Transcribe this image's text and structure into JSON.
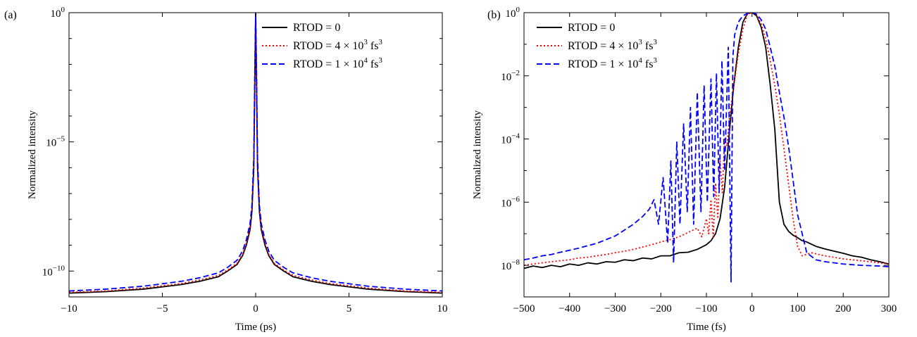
{
  "chart_data": [
    {
      "type": "line",
      "panel_label": "(a)",
      "xlabel": "Time (ps)",
      "ylabel": "Normalized intensity",
      "xlim": [
        -10,
        10
      ],
      "ylim_log10": [
        -11,
        0
      ],
      "y_scale": "log",
      "xticks": [
        -10,
        -5,
        0,
        5,
        10
      ],
      "xtick_labels": [
        "−10",
        "−5",
        "0",
        "5",
        "10"
      ],
      "yticks_log10": [
        0,
        -5,
        -10
      ],
      "ytick_labels": [
        {
          "base": "10",
          "exp": "0"
        },
        {
          "base": "10",
          "exp": "−5"
        },
        {
          "base": "10",
          "exp": "−10"
        }
      ],
      "grid": false,
      "legend_position": "top-right",
      "series": [
        {
          "name": "RTOD = 0",
          "legend": {
            "prefix": "RTOD = 0",
            "exp": "",
            "suffix": ""
          },
          "color": "#000000",
          "dash": "solid",
          "x": [
            -10,
            -8,
            -6,
            -4,
            -3,
            -2,
            -1.5,
            -1,
            -0.7,
            -0.5,
            -0.3,
            -0.2,
            -0.1,
            -0.05,
            0,
            0.05,
            0.1,
            0.2,
            0.3,
            0.5,
            0.7,
            1,
            1.5,
            2,
            3,
            4,
            6,
            8,
            10
          ],
          "y": [
            1.4e-11,
            1.6e-11,
            2e-11,
            3e-11,
            4e-11,
            6e-11,
            1e-10,
            1.8e-10,
            4e-10,
            1e-09,
            4e-09,
            2e-08,
            1e-06,
            0.001,
            1.0,
            0.001,
            1e-06,
            2e-08,
            4e-09,
            1e-09,
            4e-10,
            1.8e-10,
            1e-10,
            6e-11,
            4e-11,
            3e-11,
            2e-11,
            1.6e-11,
            1.4e-11
          ]
        },
        {
          "name": "RTOD = 4 × 10^3 fs^3",
          "legend": {
            "prefix": "RTOD = 4 × 10",
            "exp": "3",
            "suffix": " fs",
            "exp2": "3"
          },
          "color": "#ff0000",
          "dash": "dotted",
          "x": [
            -10,
            -8,
            -6,
            -4,
            -3,
            -2,
            -1.5,
            -1,
            -0.7,
            -0.5,
            -0.3,
            -0.2,
            -0.1,
            -0.05,
            0,
            0.05,
            0.1,
            0.2,
            0.3,
            0.5,
            0.7,
            1,
            1.5,
            2,
            3,
            4,
            6,
            8,
            10
          ],
          "y": [
            1.5e-11,
            1.7e-11,
            2.2e-11,
            3.3e-11,
            4.5e-11,
            6.8e-11,
            1.1e-10,
            2e-10,
            4.5e-10,
            1.2e-09,
            5e-09,
            2.5e-08,
            1.5e-06,
            0.002,
            1.0,
            0.002,
            1.5e-06,
            2.5e-08,
            5e-09,
            1.2e-09,
            4.5e-10,
            2e-10,
            1.1e-10,
            6.8e-11,
            4.5e-11,
            3.3e-11,
            2.2e-11,
            1.7e-11,
            1.5e-11
          ]
        },
        {
          "name": "RTOD = 1 × 10^4 fs^3",
          "legend": {
            "prefix": "RTOD = 1 × 10",
            "exp": "4",
            "suffix": " fs",
            "exp2": "3"
          },
          "color": "#0000ff",
          "dash": "dashed",
          "x": [
            -10,
            -8,
            -6,
            -4,
            -3,
            -2,
            -1.5,
            -1,
            -0.7,
            -0.5,
            -0.3,
            -0.2,
            -0.1,
            -0.05,
            0,
            0.05,
            0.1,
            0.2,
            0.3,
            0.5,
            0.7,
            1,
            1.5,
            2,
            3,
            4,
            6,
            8,
            10
          ],
          "y": [
            1.7e-11,
            2e-11,
            2.6e-11,
            4e-11,
            5.5e-11,
            8.5e-11,
            1.4e-10,
            2.6e-10,
            6e-10,
            1.6e-09,
            7e-09,
            3.5e-08,
            2.5e-06,
            0.003,
            1.0,
            0.003,
            2.5e-06,
            3.5e-08,
            7e-09,
            1.6e-09,
            6e-10,
            2.6e-10,
            1.4e-10,
            8.5e-11,
            5.5e-11,
            4e-11,
            2.6e-11,
            2e-11,
            1.7e-11
          ]
        }
      ]
    },
    {
      "type": "line",
      "panel_label": "(b)",
      "xlabel": "Time (fs)",
      "ylabel": "Normalized intensity",
      "xlim": [
        -500,
        300
      ],
      "ylim_log10": [
        -9,
        0
      ],
      "y_scale": "log",
      "xticks": [
        -500,
        -400,
        -300,
        -200,
        -100,
        0,
        100,
        200,
        300
      ],
      "xtick_labels": [
        "−500",
        "−400",
        "−300",
        "−200",
        "−100",
        "0",
        "100",
        "200",
        "300"
      ],
      "yticks_log10": [
        0,
        -2,
        -4,
        -6,
        -8
      ],
      "ytick_labels": [
        {
          "base": "10",
          "exp": "0"
        },
        {
          "base": "10",
          "exp": "−2"
        },
        {
          "base": "10",
          "exp": "−4"
        },
        {
          "base": "10",
          "exp": "−6"
        },
        {
          "base": "10",
          "exp": "−8"
        }
      ],
      "grid": false,
      "legend_position": "top-left",
      "series": [
        {
          "name": "RTOD = 0",
          "legend": {
            "prefix": "RTOD = 0",
            "exp": "",
            "suffix": ""
          },
          "color": "#000000",
          "dash": "solid",
          "x": [
            -500,
            -480,
            -460,
            -440,
            -420,
            -400,
            -380,
            -360,
            -340,
            -320,
            -300,
            -280,
            -260,
            -240,
            -220,
            -200,
            -180,
            -160,
            -140,
            -120,
            -100,
            -90,
            -80,
            -70,
            -60,
            -50,
            -40,
            -30,
            -20,
            -10,
            0,
            10,
            20,
            30,
            40,
            50,
            60,
            70,
            80,
            90,
            100,
            110,
            120,
            140,
            160,
            180,
            200,
            220,
            240,
            260,
            280,
            300
          ],
          "y": [
            8e-09,
            9.5e-09,
            8.5e-09,
            1e-08,
            9e-09,
            1.1e-08,
            1e-08,
            1.2e-08,
            1.1e-08,
            1.3e-08,
            1.25e-08,
            1.5e-08,
            1.4e-08,
            1.7e-08,
            1.6e-08,
            2e-08,
            2e-08,
            2.5e-08,
            2.6e-08,
            3.2e-08,
            4.5e-08,
            6e-08,
            1e-07,
            3e-07,
            3e-06,
            0.00015,
            0.005,
            0.08,
            0.5,
            0.95,
            1.0,
            0.8,
            0.35,
            0.08,
            0.005,
            0.0002,
            1e-06,
            2e-07,
            1.2e-07,
            9e-08,
            7.5e-08,
            6e-08,
            5.5e-08,
            4e-08,
            3.3e-08,
            2.8e-08,
            2.4e-08,
            2e-08,
            1.8e-08,
            1.5e-08,
            1.3e-08,
            1.1e-08
          ]
        },
        {
          "name": "RTOD = 4 × 10^3 fs^3",
          "legend": {
            "prefix": "RTOD = 4 × 10",
            "exp": "3",
            "suffix": " fs",
            "exp2": "3"
          },
          "color": "#ff0000",
          "dash": "dotted",
          "x": [
            -500,
            -480,
            -460,
            -440,
            -420,
            -400,
            -380,
            -360,
            -340,
            -320,
            -300,
            -280,
            -260,
            -240,
            -220,
            -200,
            -180,
            -160,
            -140,
            -120,
            -110,
            -100,
            -95,
            -90,
            -85,
            -80,
            -75,
            -70,
            -65,
            -60,
            -55,
            -50,
            -40,
            -30,
            -20,
            -10,
            0,
            10,
            20,
            30,
            40,
            50,
            60,
            70,
            80,
            90,
            100,
            110,
            130,
            160,
            200,
            240,
            280,
            300
          ],
          "y": [
            1e-08,
            1.1e-08,
            1.2e-08,
            1.3e-08,
            1.4e-08,
            1.5e-08,
            1.7e-08,
            1.8e-08,
            2e-08,
            2.2e-08,
            2.5e-08,
            2.8e-08,
            3.2e-08,
            3.8e-08,
            4.5e-08,
            5.5e-08,
            6.5e-08,
            8e-08,
            1.1e-07,
            1.5e-07,
            8e-08,
            3e-07,
            1e-07,
            1.2e-06,
            8e-08,
            4e-06,
            3e-07,
            2e-05,
            2e-06,
            0.0001,
            6e-05,
            0.0004,
            0.005,
            0.05,
            0.3,
            0.9,
            1.0,
            0.85,
            0.45,
            0.15,
            0.03,
            0.005,
            0.0006,
            5e-05,
            4e-06,
            3e-07,
            4e-08,
            2e-08,
            2.5e-08,
            2e-08,
            1.6e-08,
            1.4e-08,
            1.2e-08,
            1.1e-08
          ]
        },
        {
          "name": "RTOD = 1 × 10^4 fs^3",
          "legend": {
            "prefix": "RTOD = 1 × 10",
            "exp": "4",
            "suffix": " fs",
            "exp2": "3"
          },
          "color": "#0000ff",
          "dash": "dashed",
          "x": [
            -500,
            -480,
            -460,
            -440,
            -420,
            -400,
            -380,
            -360,
            -340,
            -320,
            -300,
            -280,
            -260,
            -240,
            -225,
            -215,
            -205,
            -195,
            -185,
            -178,
            -172,
            -165,
            -158,
            -150,
            -142,
            -135,
            -128,
            -120,
            -112,
            -105,
            -98,
            -90,
            -84,
            -78,
            -72,
            -66,
            -60,
            -52,
            -46,
            -42,
            -38,
            -30,
            -20,
            -10,
            0,
            10,
            20,
            30,
            40,
            50,
            60,
            70,
            80,
            90,
            100,
            110,
            120,
            140,
            160,
            200,
            240,
            280,
            300
          ],
          "y": [
            1.5e-08,
            1.7e-08,
            2e-08,
            2.2e-08,
            2.6e-08,
            3e-08,
            3.5e-08,
            4.2e-08,
            5e-08,
            6.5e-08,
            8.5e-08,
            1.3e-07,
            2e-07,
            3.5e-07,
            6e-07,
            1.2e-06,
            2e-07,
            6e-06,
            5e-08,
            2e-05,
            1.2e-08,
            8e-05,
            2e-07,
            0.0003,
            5e-07,
            0.001,
            2e-07,
            0.003,
            5e-07,
            0.005,
            1e-06,
            0.008,
            1.5e-06,
            0.012,
            2e-06,
            0.03,
            1e-05,
            0.08,
            3e-09,
            0.04,
            0.2,
            0.5,
            0.8,
            0.95,
            1.0,
            0.9,
            0.6,
            0.3,
            0.08,
            0.02,
            0.003,
            0.0005,
            6e-05,
            5e-06,
            4e-07,
            1e-07,
            2.5e-08,
            1.5e-08,
            1.3e-08,
            1.1e-08,
            1e-08,
            9.5e-09,
            9e-09
          ]
        }
      ]
    }
  ]
}
